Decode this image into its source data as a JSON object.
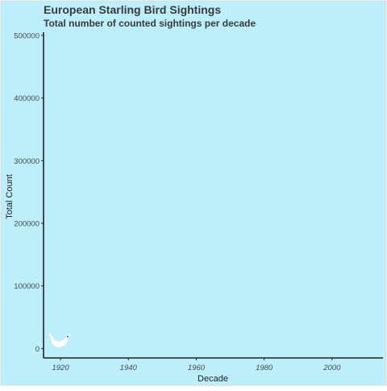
{
  "colors": {
    "panel_background": "#bdeefb",
    "frame_border": "#d9d9d9",
    "axis_line": "#222222",
    "bird": "#ffffff"
  },
  "bird_icon": "bird-icon",
  "chart_data": {
    "type": "line",
    "title": "European Starling Bird Sightings",
    "subtitle": "Total number of counted sightings per decade",
    "xlabel": "Decade",
    "ylabel": "Total Count",
    "xlim": [
      1915,
      2015
    ],
    "ylim": [
      -15000,
      505000
    ],
    "x_ticks": [
      1920,
      1940,
      1960,
      1980,
      2000
    ],
    "y_ticks": [
      0,
      100000,
      200000,
      300000,
      400000,
      500000
    ],
    "grid": false,
    "series": [
      {
        "x": [
          1920
        ],
        "values": [
          10000
        ]
      }
    ]
  }
}
